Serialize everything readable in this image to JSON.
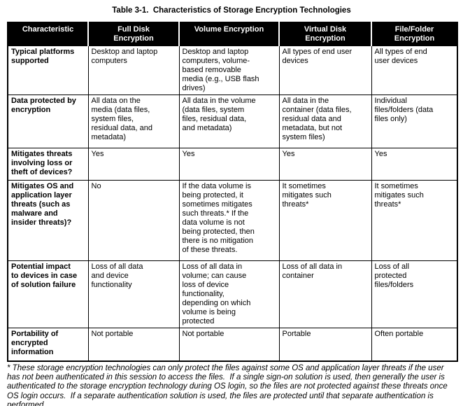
{
  "title": "Table 3-1.  Characteristics of Storage Encryption Technologies",
  "table": {
    "headers": [
      "Characteristic",
      "Full Disk Encryption",
      "Volume Encryption",
      "Virtual Disk Encryption",
      "File/Folder Encryption"
    ],
    "rows": [
      {
        "characteristic": "Typical platforms supported",
        "cells": [
          "Desktop and laptop computers",
          "Desktop and laptop computers, volume-based removable media (e.g., USB flash drives)",
          "All types of end user devices",
          "All types of end user devices"
        ]
      },
      {
        "characteristic": "Data protected by encryption",
        "cells": [
          "All data on the media (data files, system files, residual data, and metadata)",
          "All data in the volume (data files, system files, residual data, and metadata)",
          "All data in the container (data files, residual data and metadata, but not system files)",
          "Individual files/folders (data files only)"
        ]
      },
      {
        "characteristic": "Mitigates threats involving loss or theft of devices?",
        "cells": [
          "Yes",
          "Yes",
          "Yes",
          "Yes"
        ]
      },
      {
        "characteristic": "Mitigates OS and application layer threats (such as malware and insider threats)?",
        "cells": [
          "No",
          "If the data volume is being protected, it sometimes mitigates such threats.* If the data volume is not being protected, then there is no mitigation of these threats.",
          "It sometimes mitigates such threats*",
          "It sometimes mitigates such threats*"
        ]
      },
      {
        "characteristic": "Potential impact to devices in case of solution failure",
        "cells": [
          "Loss of all data and device functionality",
          "Loss of all data in volume; can cause loss of device functionality, depending on which volume is being protected",
          "Loss of all data in container",
          "Loss of all protected files/folders"
        ]
      },
      {
        "characteristic": "Portability of encrypted information",
        "cells": [
          "Not portable",
          "Not portable",
          "Portable",
          "Often portable"
        ]
      }
    ]
  },
  "footnote": "* These storage encryption technologies can only protect the files against some OS and application layer threats if the user has not been authenticated in this session to access the files.  If a single sign-on solution is used, then generally the user is authenticated to the storage encryption technology during OS login, so the files are not protected against these threats once OS login occurs.  If a separate authentication solution is used, the files are protected until that separate authentication is performed."
}
